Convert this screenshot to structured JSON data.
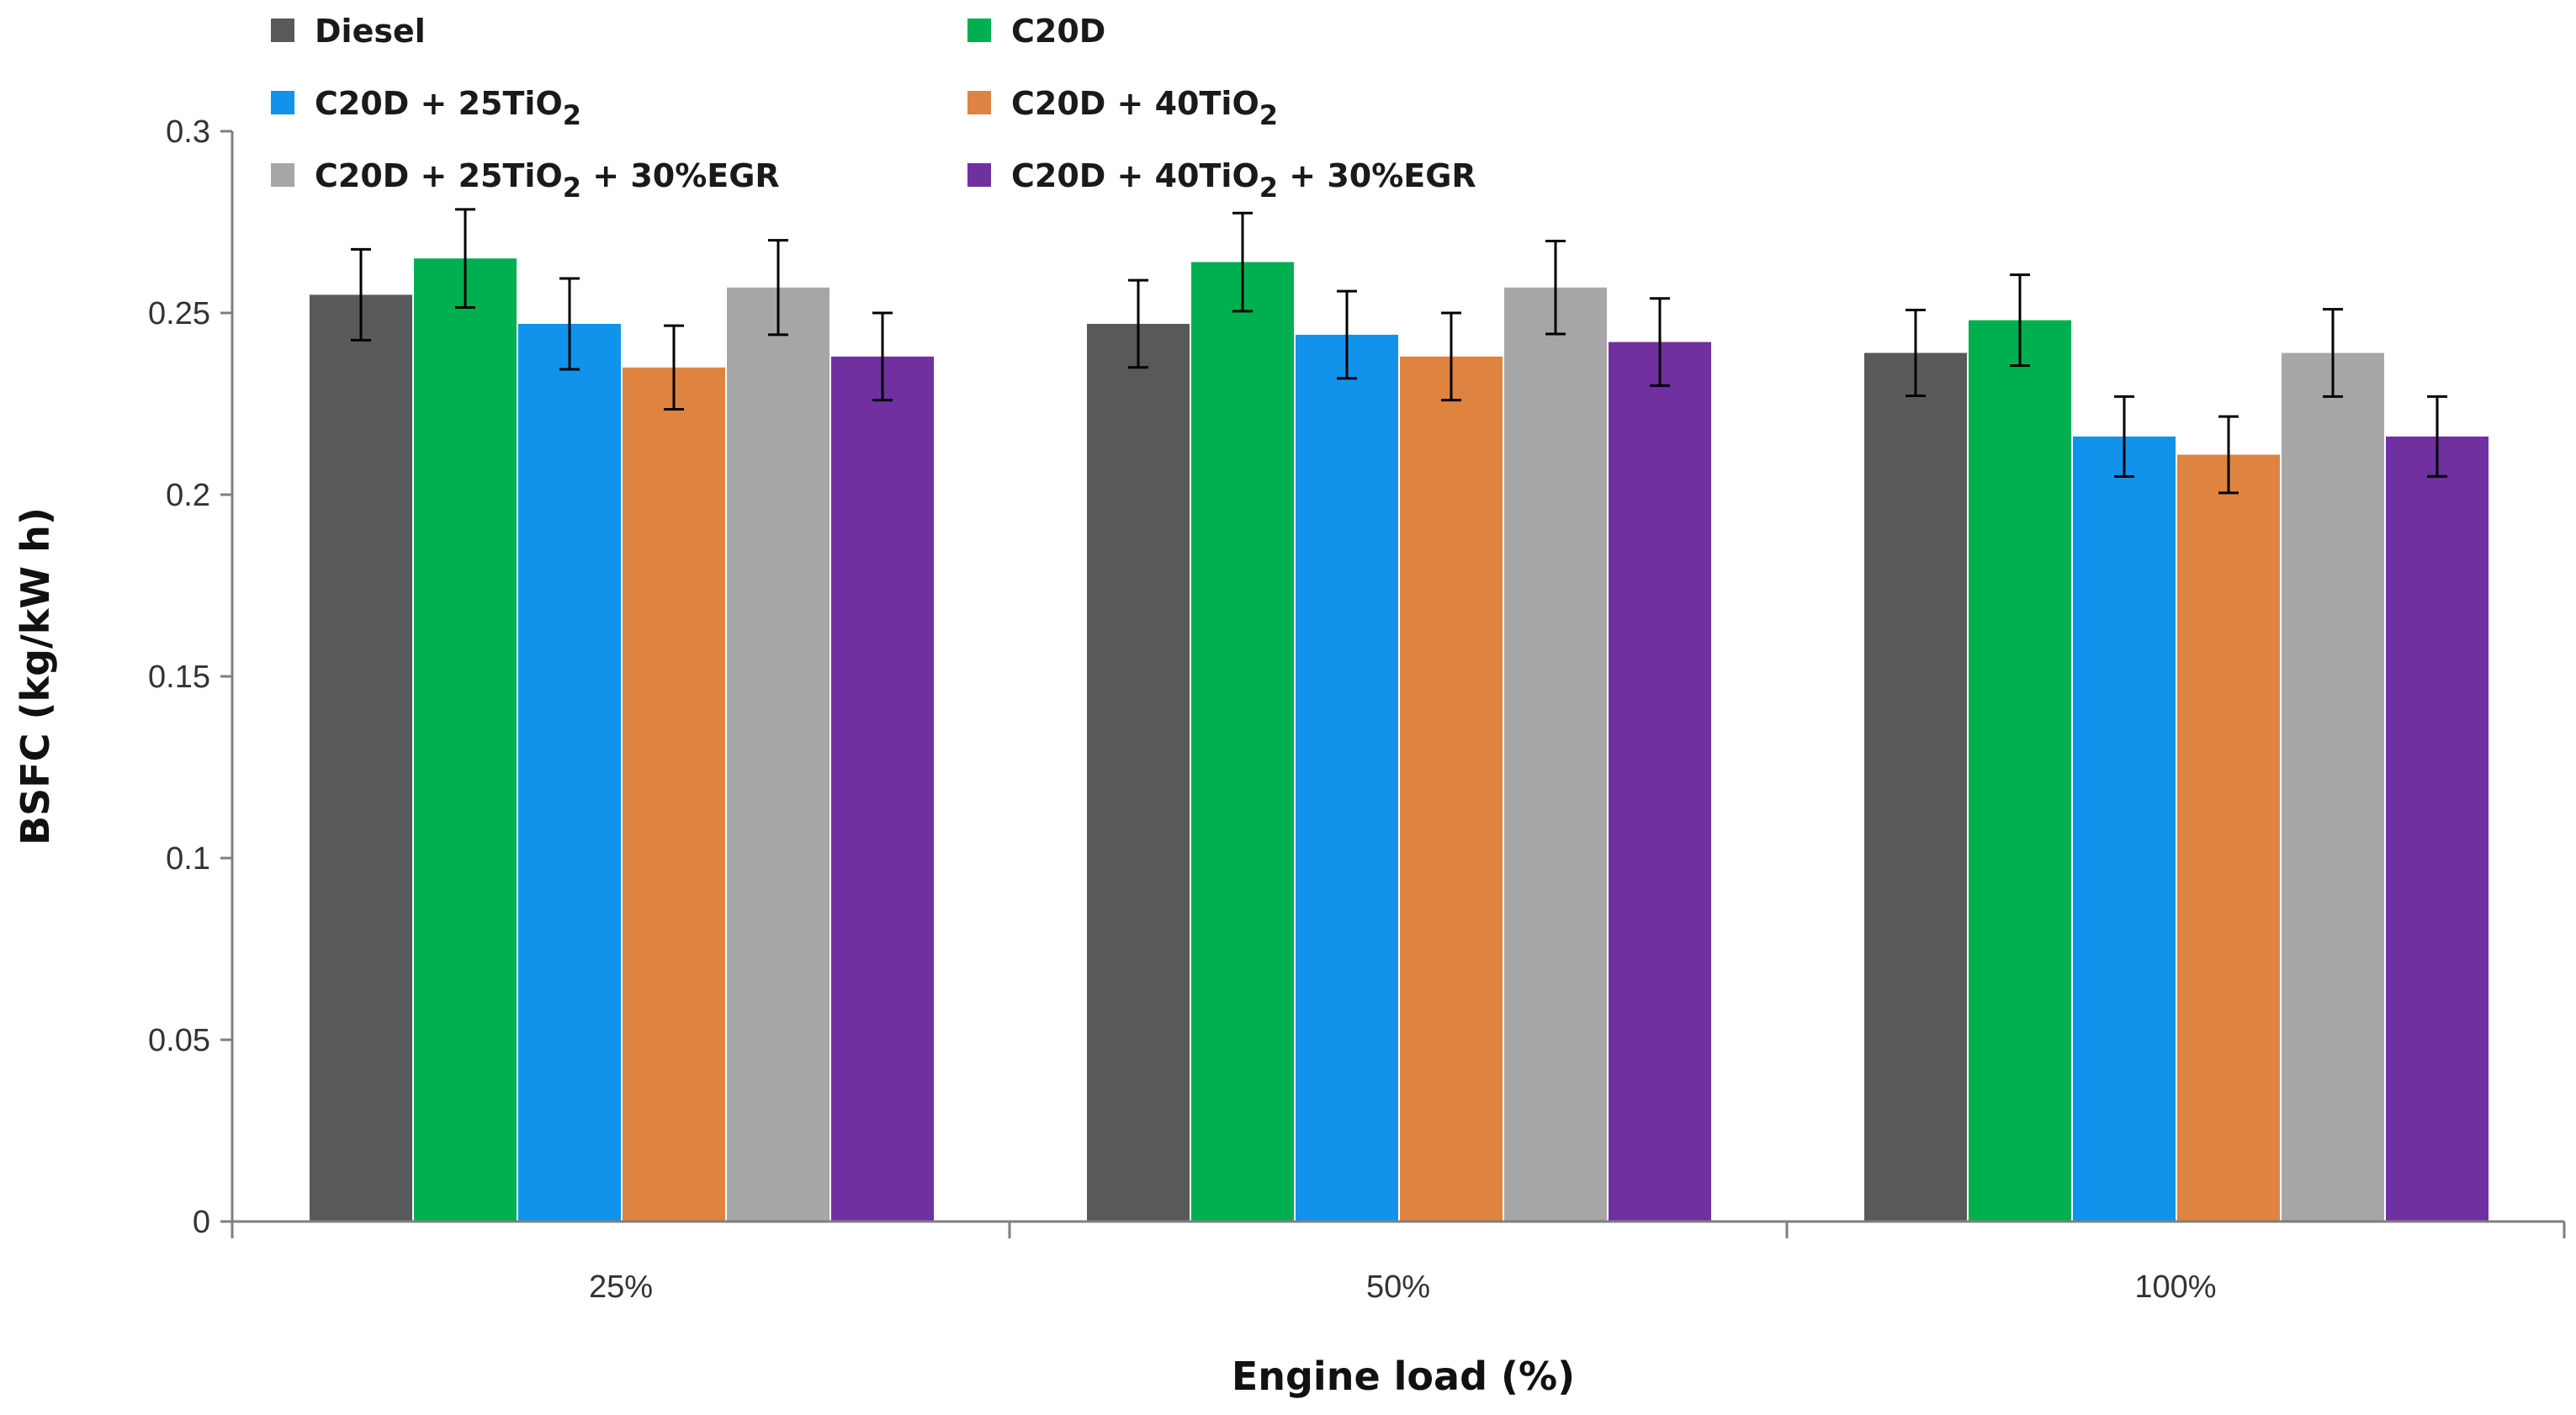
{
  "chart_data": {
    "type": "bar",
    "title": "",
    "xlabel": "Engine load (%)",
    "ylabel": "BSFC (kg/kW h)",
    "ylim": [
      0,
      0.3
    ],
    "yticks": [
      "0",
      "0.05",
      "0.1",
      "0.15",
      "0.2",
      "0.25",
      "0.3"
    ],
    "categories": [
      "25%",
      "50%",
      "100%"
    ],
    "legend_position": "top",
    "series": [
      {
        "name": "Diesel",
        "label": {
          "main": "Diesel",
          "sub": "",
          "tail": ""
        },
        "color": "#595959",
        "values": [
          0.255,
          0.247,
          0.239
        ],
        "errors": [
          0.0125,
          0.012,
          0.0118
        ]
      },
      {
        "name": "C20D",
        "label": {
          "main": "C20D",
          "sub": "",
          "tail": ""
        },
        "color": "#00b050",
        "values": [
          0.265,
          0.264,
          0.248
        ],
        "errors": [
          0.0135,
          0.0135,
          0.0125
        ]
      },
      {
        "name": "C20D + 25TiO2",
        "label": {
          "main": "C20D + 25TiO",
          "sub": "2",
          "tail": ""
        },
        "color": "#1193ec",
        "values": [
          0.247,
          0.244,
          0.216
        ],
        "errors": [
          0.0125,
          0.012,
          0.011
        ]
      },
      {
        "name": "C20D + 40TiO2",
        "label": {
          "main": "C20D + 40TiO",
          "sub": "2",
          "tail": ""
        },
        "color": "#de8440",
        "values": [
          0.235,
          0.238,
          0.211
        ],
        "errors": [
          0.0115,
          0.012,
          0.0105
        ]
      },
      {
        "name": "C20D + 25TiO2 + 30%EGR",
        "label": {
          "main": "C20D + 25TiO",
          "sub": "2",
          "tail": " + 30%EGR"
        },
        "color": "#a6a6a6",
        "values": [
          0.257,
          0.257,
          0.239
        ],
        "errors": [
          0.013,
          0.0128,
          0.012
        ]
      },
      {
        "name": "C20D + 40TiO2 + 30%EGR",
        "label": {
          "main": "C20D + 40TiO",
          "sub": "2",
          "tail": " + 30%EGR"
        },
        "color": "#7030a0",
        "values": [
          0.238,
          0.242,
          0.216
        ],
        "errors": [
          0.012,
          0.012,
          0.011
        ]
      }
    ]
  }
}
